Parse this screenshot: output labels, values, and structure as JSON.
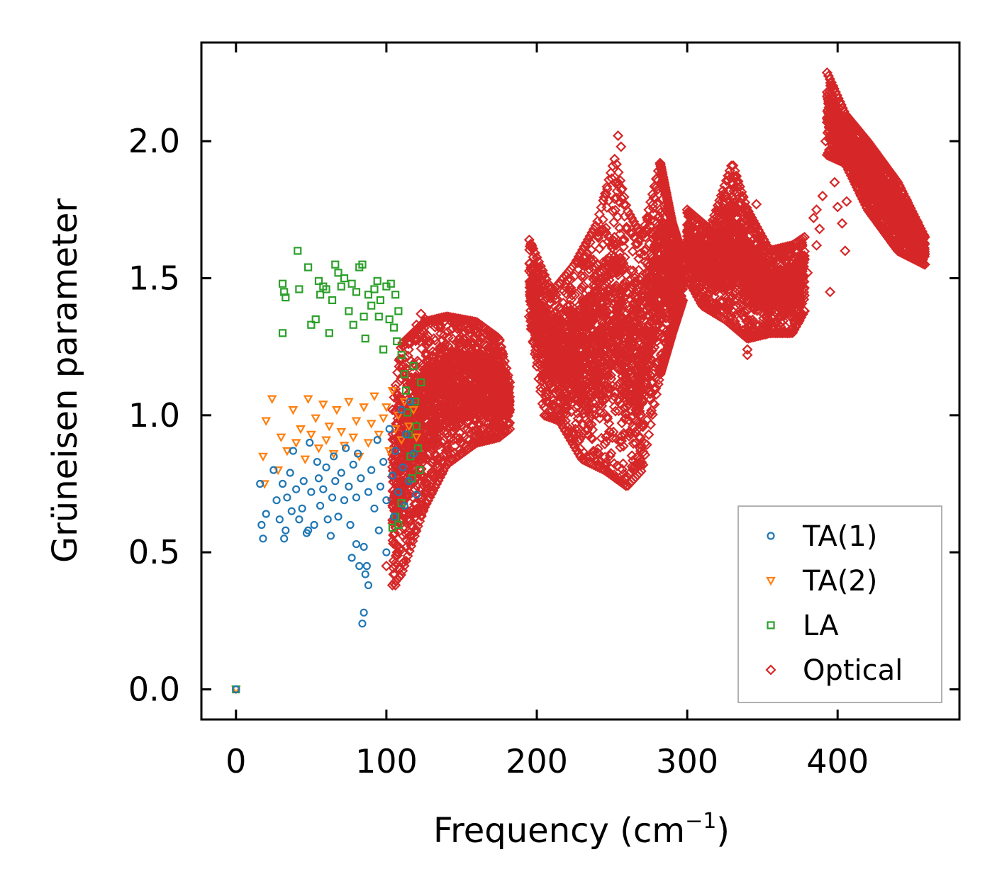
{
  "chart_data": {
    "type": "scatter",
    "title": "",
    "xlabel": "Frequency (cm",
    "xlabel_sup": "−1",
    "xlabel_close": ")",
    "ylabel": "Grüneisen parameter",
    "xlim": [
      -23,
      481
    ],
    "ylim": [
      -0.11,
      2.36
    ],
    "xticks": [
      0,
      100,
      200,
      300,
      400
    ],
    "xtick_labels": [
      "0",
      "100",
      "200",
      "300",
      "400"
    ],
    "yticks": [
      0.0,
      0.5,
      1.0,
      1.5,
      2.0
    ],
    "ytick_labels": [
      "0.0",
      "0.5",
      "1.0",
      "1.5",
      "2.0"
    ],
    "legend_position": "lower-right",
    "series": [
      {
        "name": "TA(1)",
        "marker": "circle",
        "color": "#1f77b4",
        "points": [
          [
            0,
            0
          ],
          [
            16,
            0.75
          ],
          [
            17,
            0.6
          ],
          [
            18,
            0.55
          ],
          [
            20,
            0.64
          ],
          [
            25,
            0.8
          ],
          [
            27,
            0.69
          ],
          [
            29,
            0.62
          ],
          [
            31,
            0.75
          ],
          [
            32,
            0.55
          ],
          [
            33,
            0.58
          ],
          [
            34,
            0.7
          ],
          [
            36,
            0.79
          ],
          [
            37,
            0.65
          ],
          [
            38,
            0.87
          ],
          [
            40,
            0.73
          ],
          [
            42,
            0.62
          ],
          [
            44,
            0.66
          ],
          [
            45,
            0.76
          ],
          [
            47,
            0.57
          ],
          [
            48,
            0.58
          ],
          [
            49,
            0.9
          ],
          [
            50,
            0.72
          ],
          [
            52,
            0.6
          ],
          [
            54,
            0.83
          ],
          [
            55,
            0.77
          ],
          [
            56,
            0.67
          ],
          [
            58,
            0.73
          ],
          [
            60,
            0.81
          ],
          [
            61,
            0.62
          ],
          [
            63,
            0.56
          ],
          [
            64,
            0.7
          ],
          [
            65,
            0.85
          ],
          [
            66,
            0.76
          ],
          [
            68,
            0.63
          ],
          [
            70,
            0.79
          ],
          [
            72,
            0.69
          ],
          [
            73,
            0.88
          ],
          [
            75,
            0.74
          ],
          [
            76,
            0.6
          ],
          [
            77,
            0.48
          ],
          [
            78,
            0.82
          ],
          [
            80,
            0.53
          ],
          [
            80,
            0.7
          ],
          [
            81,
            0.86
          ],
          [
            82,
            0.45
          ],
          [
            83,
            0.77
          ],
          [
            84,
            0.24
          ],
          [
            85,
            0.28
          ],
          [
            85,
            0.52
          ],
          [
            86,
            0.42
          ],
          [
            87,
            0.45
          ],
          [
            88,
            0.38
          ],
          [
            88,
            0.72
          ],
          [
            90,
            0.8
          ],
          [
            92,
            0.66
          ],
          [
            94,
            0.91
          ],
          [
            95,
            0.58
          ],
          [
            96,
            0.74
          ],
          [
            98,
            0.83
          ],
          [
            100,
            0.5
          ],
          [
            100,
            0.69
          ],
          [
            102,
            0.95
          ],
          [
            104,
            0.78
          ],
          [
            105,
            0.63
          ],
          [
            106,
            0.87
          ],
          [
            108,
            0.72
          ],
          [
            110,
            1.02
          ],
          [
            111,
            0.81
          ],
          [
            112,
            0.67
          ],
          [
            113,
            0.93
          ],
          [
            115,
            0.76
          ],
          [
            116,
            1.05
          ],
          [
            118,
            0.86
          ],
          [
            120,
            0.71
          ]
        ]
      },
      {
        "name": "TA(2)",
        "marker": "triangle-down",
        "color": "#ff7f0e",
        "points": [
          [
            0,
            0
          ],
          [
            18,
            0.85
          ],
          [
            19,
            0.75
          ],
          [
            20,
            0.98
          ],
          [
            24,
            1.06
          ],
          [
            28,
            0.8
          ],
          [
            30,
            0.92
          ],
          [
            34,
            0.87
          ],
          [
            38,
            1.02
          ],
          [
            40,
            0.9
          ],
          [
            43,
            0.95
          ],
          [
            46,
            0.84
          ],
          [
            48,
            1.06
          ],
          [
            50,
            0.93
          ],
          [
            53,
            0.99
          ],
          [
            55,
            0.88
          ],
          [
            58,
            1.04
          ],
          [
            60,
            0.91
          ],
          [
            62,
            0.96
          ],
          [
            65,
            0.86
          ],
          [
            67,
            1.02
          ],
          [
            70,
            0.94
          ],
          [
            72,
            0.89
          ],
          [
            75,
            1.05
          ],
          [
            78,
            0.92
          ],
          [
            80,
            0.98
          ],
          [
            82,
            0.85
          ],
          [
            85,
            1.03
          ],
          [
            88,
            0.9
          ],
          [
            90,
            0.97
          ],
          [
            92,
            1.07
          ],
          [
            95,
            0.93
          ],
          [
            98,
            0.99
          ],
          [
            100,
            1.03
          ],
          [
            102,
            0.87
          ],
          [
            104,
            1.09
          ],
          [
            106,
            0.95
          ],
          [
            108,
            1.0
          ],
          [
            110,
            0.91
          ],
          [
            112,
            1.05
          ],
          [
            115,
            0.96
          ],
          [
            118,
            1.02
          ],
          [
            120,
            0.92
          ]
        ]
      },
      {
        "name": "LA",
        "marker": "square",
        "color": "#2ca02c",
        "points": [
          [
            0,
            0
          ],
          [
            31,
            1.3
          ],
          [
            31,
            1.48
          ],
          [
            32,
            1.45
          ],
          [
            33,
            1.43
          ],
          [
            41,
            1.6
          ],
          [
            42,
            1.46
          ],
          [
            48,
            1.54
          ],
          [
            50,
            1.33
          ],
          [
            53,
            1.35
          ],
          [
            55,
            1.49
          ],
          [
            56,
            1.44
          ],
          [
            58,
            1.47
          ],
          [
            60,
            1.46
          ],
          [
            62,
            1.3
          ],
          [
            64,
            1.42
          ],
          [
            66,
            1.55
          ],
          [
            68,
            1.52
          ],
          [
            70,
            1.47
          ],
          [
            72,
            1.5
          ],
          [
            75,
            1.38
          ],
          [
            77,
            1.48
          ],
          [
            78,
            1.33
          ],
          [
            80,
            1.45
          ],
          [
            82,
            1.54
          ],
          [
            84,
            1.55
          ],
          [
            85,
            1.36
          ],
          [
            86,
            1.28
          ],
          [
            88,
            1.44
          ],
          [
            90,
            1.4
          ],
          [
            92,
            1.46
          ],
          [
            94,
            1.49
          ],
          [
            95,
            1.36
          ],
          [
            96,
            1.42
          ],
          [
            98,
            1.24
          ],
          [
            100,
            1.47
          ],
          [
            102,
            1.35
          ],
          [
            103,
            1.48
          ],
          [
            105,
            1.32
          ],
          [
            106,
            1.44
          ],
          [
            107,
            1.27
          ],
          [
            108,
            1.38
          ],
          [
            110,
            1.22
          ],
          [
            112,
            1.15
          ],
          [
            113,
            1.09
          ],
          [
            114,
            1.01
          ],
          [
            115,
            0.93
          ],
          [
            116,
            0.85
          ],
          [
            117,
            0.77
          ],
          [
            118,
            1.18
          ],
          [
            119,
            1.05
          ],
          [
            120,
            0.96
          ],
          [
            121,
            0.88
          ],
          [
            122,
            0.8
          ],
          [
            123,
            1.12
          ],
          [
            108,
            0.6
          ],
          [
            106,
            0.63
          ],
          [
            110,
            0.68
          ],
          [
            104,
            0.59
          ]
        ]
      },
      {
        "name": "Optical",
        "marker": "diamond",
        "color": "#d62728",
        "clouds": [
          {
            "x": [
              104,
              182
            ],
            "upper": [
              [
                104,
                1.02
              ],
              [
                110,
                1.26
              ],
              [
                125,
                1.34
              ],
              [
                140,
                1.36
              ],
              [
                160,
                1.34
              ],
              [
                175,
                1.28
              ],
              [
                182,
                1.12
              ]
            ],
            "lower": [
              [
                104,
                0.38
              ],
              [
                110,
                0.42
              ],
              [
                125,
                0.66
              ],
              [
                140,
                0.82
              ],
              [
                160,
                0.9
              ],
              [
                175,
                0.92
              ],
              [
                182,
                0.95
              ]
            ]
          },
          {
            "x": [
              195,
              282
            ],
            "upper": [
              [
                195,
                1.64
              ],
              [
                210,
                1.45
              ],
              [
                225,
                1.55
              ],
              [
                240,
                1.7
              ],
              [
                252,
                1.94
              ],
              [
                260,
                1.75
              ],
              [
                270,
                1.65
              ],
              [
                282,
                1.92
              ]
            ],
            "lower": [
              [
                195,
                1.36
              ],
              [
                205,
                1.0
              ],
              [
                215,
                0.98
              ],
              [
                230,
                0.84
              ],
              [
                245,
                0.8
              ],
              [
                260,
                0.74
              ],
              [
                270,
                0.8
              ],
              [
                282,
                1.15
              ]
            ]
          },
          {
            "x": [
              282,
              297
            ],
            "upper": [
              [
                282,
                1.92
              ],
              [
                290,
                1.7
              ],
              [
                297,
                1.58
              ]
            ],
            "lower": [
              [
                282,
                1.15
              ],
              [
                290,
                1.3
              ],
              [
                297,
                1.42
              ]
            ]
          },
          {
            "x": [
              300,
              378
            ],
            "upper": [
              [
                300,
                1.75
              ],
              [
                315,
                1.68
              ],
              [
                330,
                1.92
              ],
              [
                340,
                1.75
              ],
              [
                355,
                1.6
              ],
              [
                370,
                1.62
              ],
              [
                378,
                1.65
              ]
            ],
            "lower": [
              [
                300,
                1.5
              ],
              [
                310,
                1.4
              ],
              [
                325,
                1.35
              ],
              [
                340,
                1.28
              ],
              [
                355,
                1.3
              ],
              [
                370,
                1.3
              ],
              [
                378,
                1.38
              ]
            ]
          },
          {
            "x": [
              393,
              458
            ],
            "upper": [
              [
                393,
                2.25
              ],
              [
                405,
                2.1
              ],
              [
                420,
                2.0
              ],
              [
                440,
                1.85
              ],
              [
                458,
                1.65
              ]
            ],
            "lower": [
              [
                393,
                1.95
              ],
              [
                405,
                1.92
              ],
              [
                420,
                1.75
              ],
              [
                440,
                1.6
              ],
              [
                458,
                1.55
              ]
            ]
          }
        ],
        "outliers": [
          [
            100,
            0.45
          ],
          [
            106,
            0.38
          ],
          [
            120,
            1.33
          ],
          [
            123,
            1.37
          ],
          [
            126,
            1.35
          ],
          [
            154,
            0.95
          ],
          [
            254,
            2.02
          ],
          [
            256,
            1.98
          ],
          [
            302,
            1.73
          ],
          [
            306,
            1.63
          ],
          [
            338,
            1.3
          ],
          [
            340,
            1.24
          ],
          [
            340,
            1.22
          ],
          [
            346,
            1.77
          ],
          [
            378,
            1.57
          ],
          [
            380,
            1.52
          ],
          [
            384,
            1.72
          ],
          [
            386,
            1.75
          ],
          [
            386,
            1.62
          ],
          [
            388,
            1.68
          ],
          [
            390,
            1.8
          ],
          [
            392,
            2.0
          ],
          [
            395,
            1.45
          ],
          [
            398,
            1.85
          ],
          [
            400,
            1.76
          ],
          [
            403,
            1.7
          ],
          [
            405,
            1.6
          ],
          [
            406,
            1.78
          ],
          [
            419,
            1.86
          ],
          [
            429,
            1.76
          ]
        ]
      }
    ]
  }
}
